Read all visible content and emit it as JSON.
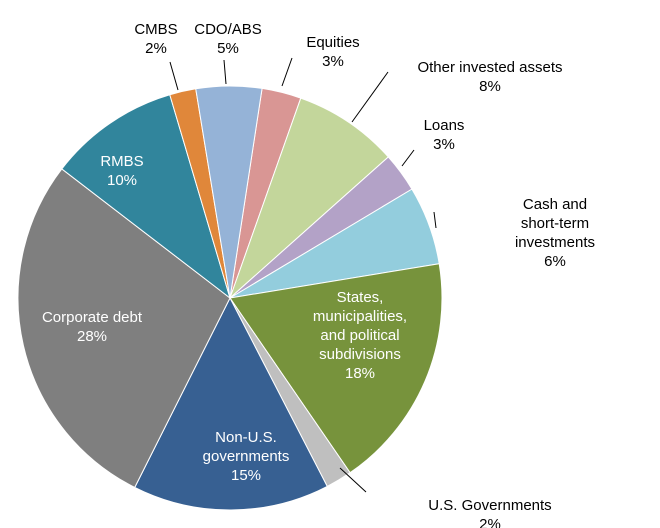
{
  "chart_data": {
    "type": "pie",
    "categories": [
      "Equities",
      "Other invested assets",
      "Loans",
      "Cash and short-term\ninvestments",
      "States,\nmunicipalities,\nand political\nsubdivisions",
      "U.S. Governments",
      "Non-U.S.\ngovernments",
      "Corporate debt",
      "RMBS",
      "CMBS",
      "CDO/ABS"
    ],
    "values": [
      3,
      8,
      3,
      6,
      18,
      2,
      15,
      28,
      10,
      2,
      5
    ],
    "value_labels": [
      "3%",
      "8%",
      "3%",
      "6%",
      "18%",
      "2%",
      "15%",
      "28%",
      "10%",
      "2%",
      "5%"
    ],
    "colors": [
      "#d99694",
      "#c3d69b",
      "#b3a2c7",
      "#93cddd",
      "#77933c",
      "#bfbfbf",
      "#376092",
      "#7f7f7f",
      "#31859c",
      "#e0873a",
      "#95b3d7"
    ]
  }
}
